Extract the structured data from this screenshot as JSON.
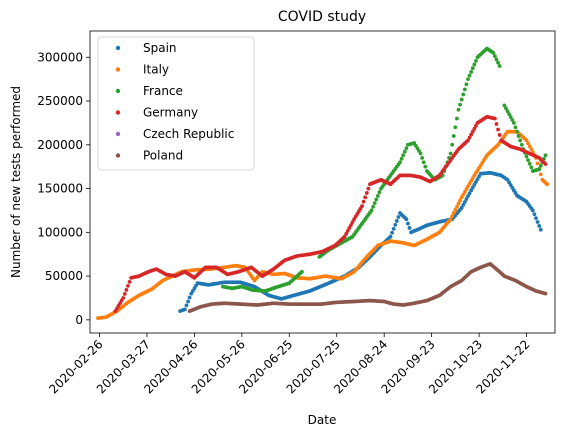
{
  "chart_data": {
    "type": "scatter",
    "title": "COVID study",
    "xlabel": "Date",
    "ylabel": "Number of new tests performed",
    "x_start": "2020-02-20",
    "x_end": "2020-12-10",
    "ylim": [
      -15000,
      330000
    ],
    "xticks": [
      "2020-02-26",
      "2020-03-27",
      "2020-04-26",
      "2020-05-26",
      "2020-06-25",
      "2020-07-25",
      "2020-08-24",
      "2020-09-23",
      "2020-10-23",
      "2020-11-22"
    ],
    "yticks": [
      0,
      50000,
      100000,
      150000,
      200000,
      250000,
      300000
    ],
    "ytick_labels": [
      "0",
      "50000",
      "100000",
      "150000",
      "200000",
      "250000",
      "300000"
    ],
    "legend_position": "upper-left",
    "series": [
      {
        "name": "Spain",
        "color": "#1f77b4",
        "segments": [
          [
            [
              "2020-04-17",
              10000
            ],
            [
              "2020-04-20",
              12000
            ],
            [
              "2020-04-24",
              30000
            ],
            [
              "2020-04-28",
              42000
            ],
            [
              "2020-05-05",
              40000
            ],
            [
              "2020-05-15",
              43000
            ],
            [
              "2020-05-25",
              43000
            ],
            [
              "2020-06-03",
              38000
            ],
            [
              "2020-06-12",
              28000
            ],
            [
              "2020-06-20",
              24000
            ],
            [
              "2020-06-28",
              28000
            ],
            [
              "2020-07-08",
              33000
            ],
            [
              "2020-07-20",
              42000
            ],
            [
              "2020-07-30",
              50000
            ],
            [
              "2020-08-08",
              60000
            ],
            [
              "2020-08-15",
              72000
            ],
            [
              "2020-08-22",
              85000
            ],
            [
              "2020-08-28",
              95000
            ],
            [
              "2020-09-03",
              122000
            ],
            [
              "2020-09-07",
              115000
            ],
            [
              "2020-09-10",
              100000
            ],
            [
              "2020-09-14",
              103000
            ],
            [
              "2020-09-20",
              108000
            ],
            [
              "2020-09-28",
              112000
            ],
            [
              "2020-10-06",
              115000
            ],
            [
              "2020-10-12",
              128000
            ],
            [
              "2020-10-18",
              148000
            ],
            [
              "2020-10-24",
              167000
            ],
            [
              "2020-10-30",
              168000
            ],
            [
              "2020-11-06",
              165000
            ],
            [
              "2020-11-10",
              160000
            ],
            [
              "2020-11-16",
              142000
            ],
            [
              "2020-11-22",
              135000
            ],
            [
              "2020-11-26",
              125000
            ],
            [
              "2020-12-01",
              103000
            ]
          ]
        ]
      },
      {
        "name": "Italy",
        "color": "#ff7f0e",
        "segments": [
          [
            [
              "2020-02-25",
              2000
            ],
            [
              "2020-03-01",
              3000
            ],
            [
              "2020-03-08",
              10000
            ],
            [
              "2020-03-15",
              20000
            ],
            [
              "2020-03-22",
              28000
            ],
            [
              "2020-03-30",
              35000
            ],
            [
              "2020-04-06",
              45000
            ],
            [
              "2020-04-12",
              50000
            ],
            [
              "2020-04-18",
              55000
            ],
            [
              "2020-04-26",
              57000
            ],
            [
              "2020-05-06",
              58000
            ],
            [
              "2020-05-15",
              60000
            ],
            [
              "2020-05-22",
              62000
            ],
            [
              "2020-05-28",
              60000
            ],
            [
              "2020-06-03",
              45000
            ],
            [
              "2020-06-08",
              55000
            ],
            [
              "2020-06-15",
              52000
            ],
            [
              "2020-06-22",
              53000
            ],
            [
              "2020-06-30",
              48000
            ],
            [
              "2020-07-08",
              47000
            ],
            [
              "2020-07-18",
              50000
            ],
            [
              "2020-07-28",
              47000
            ],
            [
              "2020-08-05",
              55000
            ],
            [
              "2020-08-12",
              70000
            ],
            [
              "2020-08-20",
              85000
            ],
            [
              "2020-08-28",
              90000
            ],
            [
              "2020-09-05",
              88000
            ],
            [
              "2020-09-12",
              85000
            ],
            [
              "2020-09-20",
              92000
            ],
            [
              "2020-09-28",
              100000
            ],
            [
              "2020-10-05",
              115000
            ],
            [
              "2020-10-12",
              140000
            ],
            [
              "2020-10-20",
              165000
            ],
            [
              "2020-10-28",
              188000
            ],
            [
              "2020-11-04",
              200000
            ],
            [
              "2020-11-10",
              215000
            ],
            [
              "2020-11-16",
              215000
            ],
            [
              "2020-11-22",
              205000
            ],
            [
              "2020-11-28",
              185000
            ],
            [
              "2020-12-02",
              160000
            ],
            [
              "2020-12-05",
              155000
            ]
          ]
        ]
      },
      {
        "name": "France",
        "color": "#2ca02c",
        "segments": [
          [
            [
              "2020-05-14",
              38000
            ],
            [
              "2020-05-20",
              36000
            ],
            [
              "2020-05-26",
              38000
            ],
            [
              "2020-06-02",
              34000
            ],
            [
              "2020-06-10",
              33000
            ],
            [
              "2020-06-18",
              38000
            ],
            [
              "2020-06-25",
              42000
            ],
            [
              "2020-07-03",
              55000
            ]
          ],
          [
            [
              "2020-07-14",
              72000
            ],
            [
              "2020-07-20",
              80000
            ],
            [
              "2020-07-28",
              88000
            ],
            [
              "2020-08-04",
              95000
            ],
            [
              "2020-08-10",
              110000
            ],
            [
              "2020-08-16",
              125000
            ],
            [
              "2020-08-22",
              150000
            ],
            [
              "2020-08-28",
              165000
            ],
            [
              "2020-09-03",
              180000
            ],
            [
              "2020-09-08",
              200000
            ],
            [
              "2020-09-12",
              202000
            ],
            [
              "2020-09-16",
              190000
            ],
            [
              "2020-09-20",
              170000
            ],
            [
              "2020-09-25",
              160000
            ],
            [
              "2020-09-30",
              165000
            ],
            [
              "2020-10-05",
              190000
            ],
            [
              "2020-10-10",
              240000
            ],
            [
              "2020-10-16",
              275000
            ],
            [
              "2020-10-22",
              300000
            ],
            [
              "2020-10-28",
              310000
            ],
            [
              "2020-11-01",
              305000
            ],
            [
              "2020-11-05",
              290000
            ]
          ],
          [
            [
              "2020-11-08",
              245000
            ],
            [
              "2020-11-14",
              225000
            ],
            [
              "2020-11-20",
              195000
            ],
            [
              "2020-11-26",
              170000
            ],
            [
              "2020-11-30",
              172000
            ],
            [
              "2020-12-04",
              188000
            ]
          ]
        ]
      },
      {
        "name": "Germany",
        "color": "#d62728",
        "segments": [
          [
            [
              "2020-03-07",
              10000
            ],
            [
              "2020-03-12",
              25000
            ],
            [
              "2020-03-17",
              48000
            ],
            [
              "2020-03-22",
              50000
            ],
            [
              "2020-03-28",
              55000
            ],
            [
              "2020-04-02",
              58000
            ],
            [
              "2020-04-08",
              52000
            ],
            [
              "2020-04-14",
              50000
            ],
            [
              "2020-04-20",
              55000
            ],
            [
              "2020-04-26",
              48000
            ],
            [
              "2020-05-03",
              60000
            ],
            [
              "2020-05-10",
              60000
            ],
            [
              "2020-05-17",
              52000
            ],
            [
              "2020-05-24",
              55000
            ],
            [
              "2020-06-01",
              60000
            ],
            [
              "2020-06-08",
              50000
            ],
            [
              "2020-06-15",
              58000
            ],
            [
              "2020-06-22",
              68000
            ],
            [
              "2020-06-30",
              73000
            ],
            [
              "2020-07-08",
              75000
            ],
            [
              "2020-07-16",
              78000
            ],
            [
              "2020-07-24",
              85000
            ],
            [
              "2020-07-30",
              95000
            ],
            [
              "2020-08-05",
              115000
            ],
            [
              "2020-08-10",
              130000
            ],
            [
              "2020-08-15",
              155000
            ],
            [
              "2020-08-22",
              160000
            ],
            [
              "2020-08-28",
              155000
            ],
            [
              "2020-09-03",
              165000
            ],
            [
              "2020-09-10",
              165000
            ],
            [
              "2020-09-16",
              163000
            ],
            [
              "2020-09-22",
              158000
            ],
            [
              "2020-09-28",
              165000
            ],
            [
              "2020-10-04",
              180000
            ],
            [
              "2020-10-10",
              195000
            ],
            [
              "2020-10-16",
              205000
            ],
            [
              "2020-10-22",
              225000
            ],
            [
              "2020-10-28",
              232000
            ],
            [
              "2020-11-02",
              230000
            ],
            [
              "2020-11-06",
              205000
            ],
            [
              "2020-11-12",
              198000
            ],
            [
              "2020-11-18",
              195000
            ],
            [
              "2020-11-24",
              190000
            ],
            [
              "2020-11-30",
              185000
            ],
            [
              "2020-12-04",
              178000
            ]
          ]
        ]
      },
      {
        "name": "Czech Republic",
        "color": "#9467bd",
        "segments": []
      },
      {
        "name": "Poland",
        "color": "#8c564b",
        "segments": [
          [
            [
              "2020-04-23",
              10000
            ],
            [
              "2020-04-30",
              15000
            ],
            [
              "2020-05-07",
              18000
            ],
            [
              "2020-05-15",
              19000
            ],
            [
              "2020-05-25",
              18000
            ],
            [
              "2020-06-05",
              17000
            ],
            [
              "2020-06-15",
              19000
            ],
            [
              "2020-06-25",
              18000
            ],
            [
              "2020-07-05",
              18000
            ],
            [
              "2020-07-15",
              18000
            ],
            [
              "2020-07-25",
              20000
            ],
            [
              "2020-08-05",
              21000
            ],
            [
              "2020-08-15",
              22000
            ],
            [
              "2020-08-24",
              21000
            ],
            [
              "2020-08-30",
              18000
            ],
            [
              "2020-09-05",
              17000
            ],
            [
              "2020-09-12",
              19000
            ],
            [
              "2020-09-20",
              22000
            ],
            [
              "2020-09-28",
              28000
            ],
            [
              "2020-10-05",
              38000
            ],
            [
              "2020-10-12",
              45000
            ],
            [
              "2020-10-18",
              55000
            ],
            [
              "2020-10-24",
              60000
            ],
            [
              "2020-10-30",
              64000
            ],
            [
              "2020-11-03",
              58000
            ],
            [
              "2020-11-08",
              50000
            ],
            [
              "2020-11-15",
              45000
            ],
            [
              "2020-11-22",
              38000
            ],
            [
              "2020-11-28",
              33000
            ],
            [
              "2020-12-04",
              30000
            ]
          ]
        ]
      }
    ]
  }
}
